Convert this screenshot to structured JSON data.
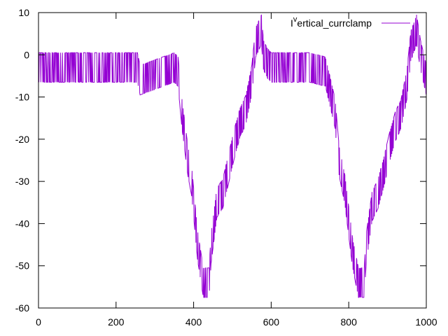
{
  "chart_data": {
    "type": "line",
    "title": "",
    "xlabel": "",
    "ylabel": "",
    "xlim": [
      0,
      1000
    ],
    "ylim": [
      -60,
      10
    ],
    "x_ticks": [
      0,
      200,
      400,
      600,
      800,
      1000
    ],
    "y_ticks": [
      -60,
      -50,
      -40,
      -30,
      -20,
      -10,
      0,
      10
    ],
    "grid": false,
    "legend_position": "top-right",
    "legend_prefix": "I",
    "legend_superscript": "v",
    "legend_suffix": "ertical_currclamp",
    "series": [
      {
        "name": "Ivertical_currclamp",
        "color": "#9400d3",
        "noise_amplitude": 7,
        "x": [
          0,
          100,
          200,
          255,
          262,
          350,
          360,
          370,
          385,
          395,
          410,
          425,
          440,
          445,
          460,
          475,
          490,
          505,
          520,
          535,
          550,
          560,
          575,
          580,
          590,
          600,
          620,
          660,
          700,
          740,
          765,
          775,
          790,
          810,
          825,
          840,
          845,
          860,
          875,
          890,
          905,
          920,
          935,
          950,
          960,
          975,
          985,
          990,
          995,
          1000
        ],
        "y": [
          -3,
          -3,
          -3,
          -3,
          -6,
          -3,
          -4,
          -14,
          -25,
          -30,
          -45,
          -54,
          -54,
          -46,
          -35,
          -33,
          -27,
          -21,
          -16,
          -13,
          -6,
          3,
          6,
          0,
          -2,
          -3,
          -3,
          -3,
          -3,
          -4,
          -14,
          -25,
          -32,
          -47,
          -54,
          -54,
          -46,
          -36,
          -33,
          -28,
          -22,
          -17,
          -14,
          -7,
          2,
          6,
          0,
          -2,
          -4,
          -6
        ]
      }
    ]
  }
}
